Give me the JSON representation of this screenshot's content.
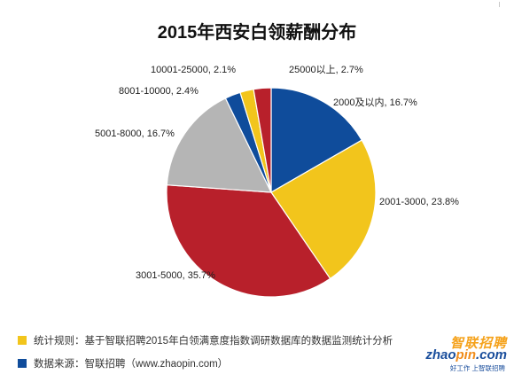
{
  "chart_data": {
    "type": "pie",
    "title": "2015年西安白领薪酬分布",
    "slices": [
      {
        "label": "2000及以内",
        "value": 16.7,
        "text": "2000及以内, 16.7%",
        "color": "#0f4c9b"
      },
      {
        "label": "2001-3000",
        "value": 23.8,
        "text": "2001-3000, 23.8%",
        "color": "#f2c51c"
      },
      {
        "label": "3001-5000",
        "value": 35.7,
        "text": "3001-5000, 35.7%",
        "color": "#b8202b"
      },
      {
        "label": "5001-8000",
        "value": 16.7,
        "text": "5001-8000, 16.7%",
        "color": "#b5b5b5"
      },
      {
        "label": "8001-10000",
        "value": 2.4,
        "text": "8001-10000, 2.4%",
        "color": "#0f4c9b"
      },
      {
        "label": "10001-25000",
        "value": 2.1,
        "text": "10001-25000, 2.1%",
        "color": "#f2c51c"
      },
      {
        "label": "25000以上",
        "value": 2.7,
        "text": "25000以上, 2.7%",
        "color": "#b8202b"
      }
    ]
  },
  "footnotes": {
    "rule_label": "统计规则：基于智联招聘2015年白领满意度指数调研数据库的数据监测统计分析",
    "rule_color": "#f2c51c",
    "source_label": "数据来源：智联招聘（www.zhaopin.com）",
    "source_color": "#0f4c9b"
  },
  "brand": {
    "name_cn": "智联招聘",
    "name_en_a": "zhao",
    "name_en_b": "pin",
    "name_en_c": ".com",
    "slogan": "好工作 上智联招聘"
  }
}
